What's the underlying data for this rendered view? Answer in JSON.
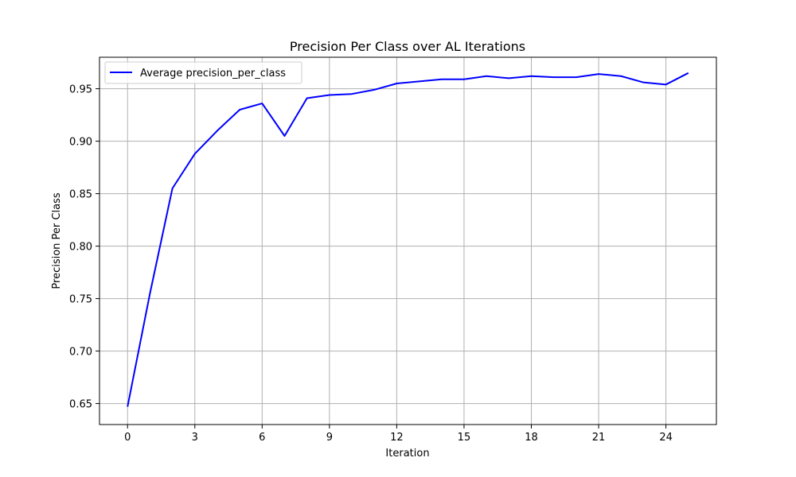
{
  "chart_data": {
    "type": "line",
    "title": "Precision Per Class over AL Iterations",
    "xlabel": "Iteration",
    "ylabel": "Precision Per Class",
    "xlim": [
      -1.25,
      26.25
    ],
    "ylim": [
      0.63,
      0.98
    ],
    "xticks": [
      0,
      3,
      6,
      9,
      12,
      15,
      18,
      21,
      24
    ],
    "yticks": [
      0.65,
      0.7,
      0.75,
      0.8,
      0.85,
      0.9,
      0.95
    ],
    "grid": true,
    "legend_position": "top-left",
    "x": [
      0,
      1,
      2,
      3,
      4,
      5,
      6,
      7,
      8,
      9,
      10,
      11,
      12,
      13,
      14,
      15,
      16,
      17,
      18,
      19,
      20,
      21,
      22,
      23,
      24,
      25
    ],
    "series": [
      {
        "name": "Average precision_per_class",
        "color": "#0000ff",
        "values": [
          0.647,
          0.755,
          0.855,
          0.888,
          0.91,
          0.93,
          0.936,
          0.905,
          0.941,
          0.944,
          0.945,
          0.949,
          0.955,
          0.957,
          0.959,
          0.959,
          0.962,
          0.96,
          0.962,
          0.961,
          0.961,
          0.964,
          0.962,
          0.956,
          0.954,
          0.965
        ]
      }
    ]
  }
}
